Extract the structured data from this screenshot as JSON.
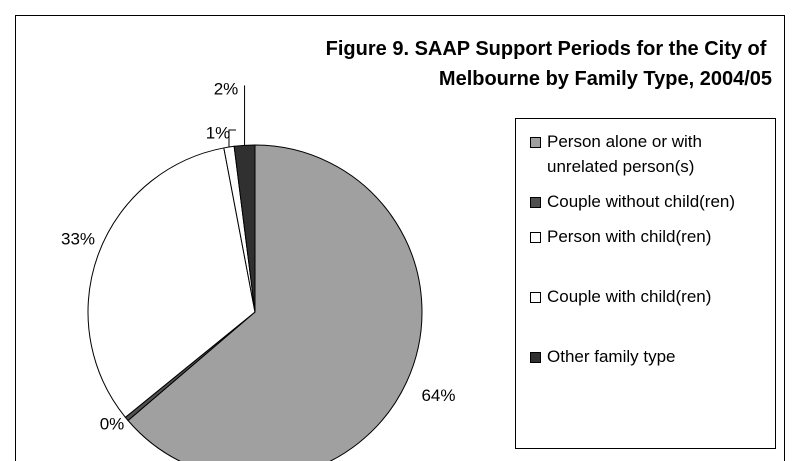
{
  "chart_data": {
    "type": "pie",
    "title": "Figure 9. SAAP Support Periods for the City of Melbourne by Family Type, 2004/05",
    "categories": [
      "Person alone or with unrelated person(s)",
      "Couple without child(ren)",
      "Person with child(ren)",
      "Couple with child(ren)",
      "Other family type"
    ],
    "values": [
      64,
      0.4,
      33,
      1,
      2
    ],
    "value_labels": [
      "64%",
      "0%",
      "33%",
      "1%",
      "2%"
    ],
    "colors": [
      "#a0a0a0",
      "#505050",
      "#ffffff",
      "#ffffff",
      "#303030"
    ],
    "legend": "right"
  }
}
